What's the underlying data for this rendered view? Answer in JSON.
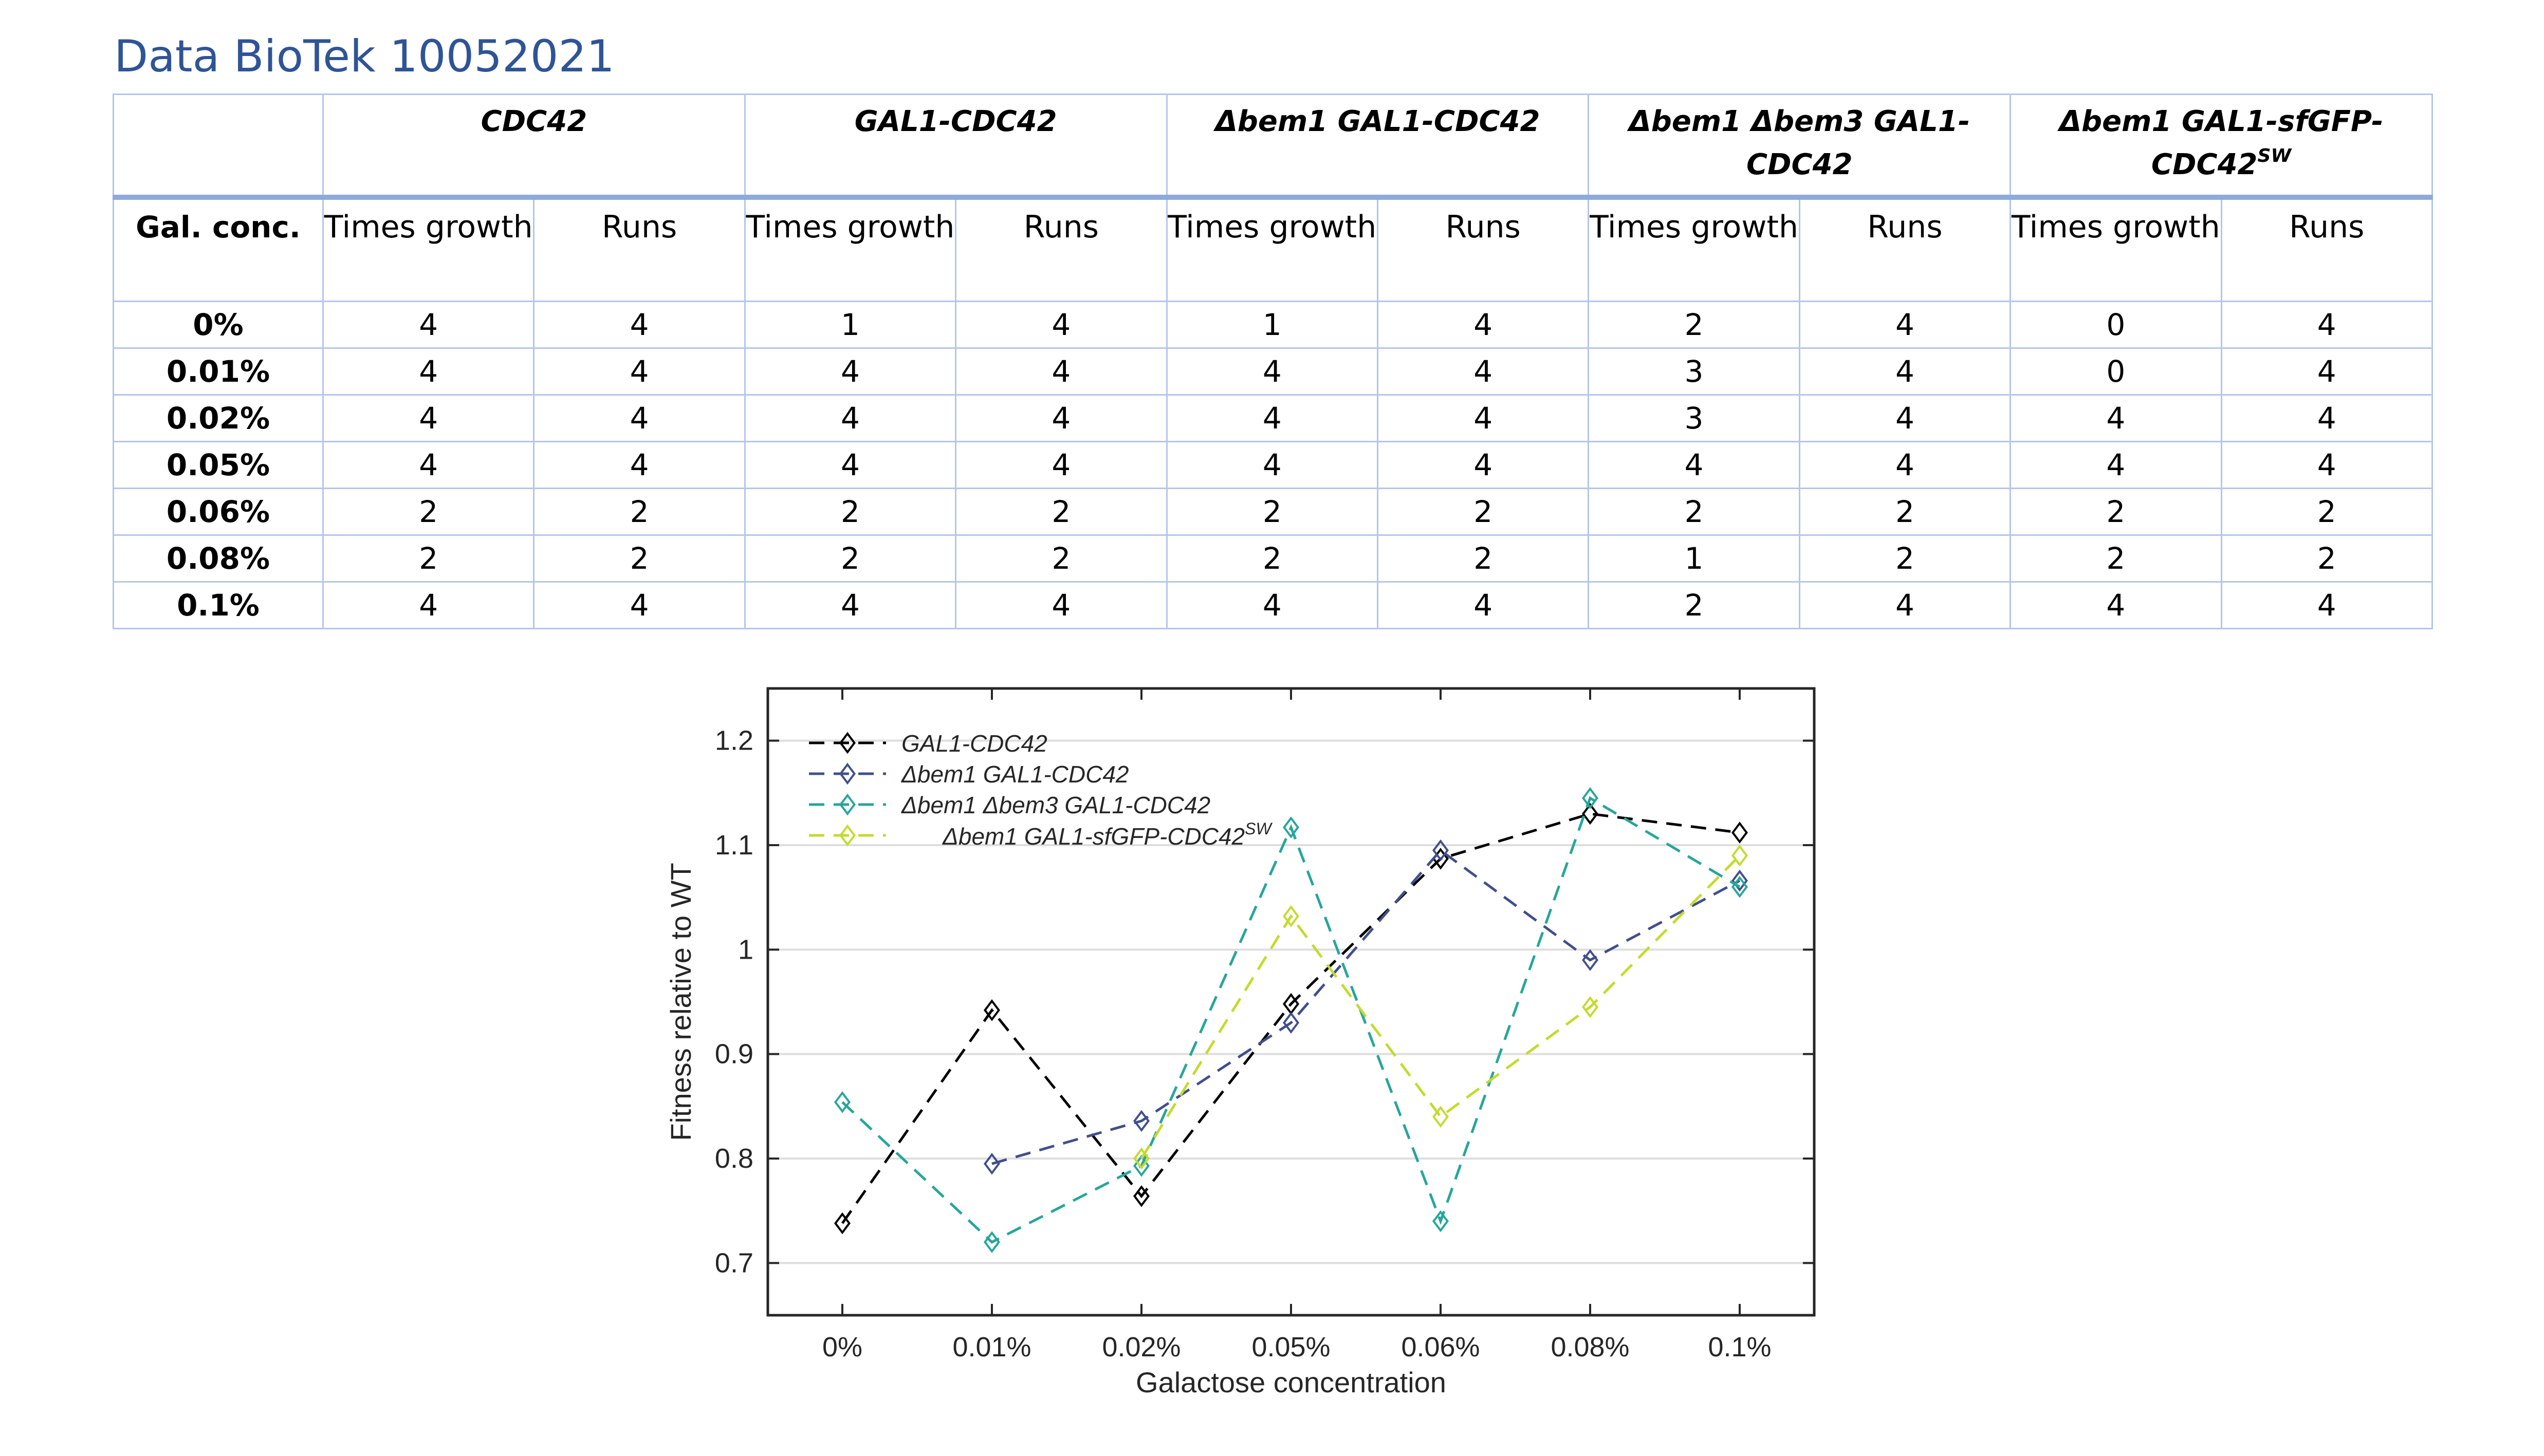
{
  "document": {
    "title": "Data BioTek 10052021"
  },
  "table": {
    "strains": [
      {
        "name": "CDC42",
        "sup": ""
      },
      {
        "name": "GAL1-CDC42",
        "sup": ""
      },
      {
        "name": "Δbem1 GAL1-CDC42",
        "sup": ""
      },
      {
        "name": "Δbem1 Δbem3 GAL1-CDC42",
        "sup": ""
      },
      {
        "name": "Δbem1 GAL1-sfGFP-CDC42",
        "sup": "SW"
      }
    ],
    "row_header": "Gal. conc.",
    "sub_headers": {
      "times": "Times growth",
      "runs": "Runs"
    },
    "rows": [
      {
        "conc": "0%",
        "values": [
          "4",
          "4",
          "1",
          "4",
          "1",
          "4",
          "2",
          "4",
          "0",
          "4"
        ]
      },
      {
        "conc": "0.01%",
        "values": [
          "4",
          "4",
          "4",
          "4",
          "4",
          "4",
          "3",
          "4",
          "0",
          "4"
        ]
      },
      {
        "conc": "0.02%",
        "values": [
          "4",
          "4",
          "4",
          "4",
          "4",
          "4",
          "3",
          "4",
          "4",
          "4"
        ]
      },
      {
        "conc": "0.05%",
        "values": [
          "4",
          "4",
          "4",
          "4",
          "4",
          "4",
          "4",
          "4",
          "4",
          "4"
        ]
      },
      {
        "conc": "0.06%",
        "values": [
          "2",
          "2",
          "2",
          "2",
          "2",
          "2",
          "2",
          "2",
          "2",
          "2"
        ]
      },
      {
        "conc": "0.08%",
        "values": [
          "2",
          "2",
          "2",
          "2",
          "2",
          "2",
          "1",
          "2",
          "2",
          "2"
        ]
      },
      {
        "conc": "0.1%",
        "values": [
          "4",
          "4",
          "4",
          "4",
          "4",
          "4",
          "2",
          "4",
          "4",
          "4"
        ]
      }
    ]
  },
  "chart_data": {
    "type": "line",
    "categories": [
      "0%",
      "0.01%",
      "0.02%",
      "0.05%",
      "0.06%",
      "0.08%",
      "0.1%"
    ],
    "xlabel": "Galactose concentration",
    "ylabel": "Fitness relative to WT",
    "ylim": [
      0.65,
      1.25
    ],
    "yticks": [
      0.7,
      0.8,
      0.9,
      1,
      1.1,
      1.2
    ],
    "ytick_labels": [
      "0.7",
      "0.8",
      "0.9",
      "1",
      "1.1",
      "1.2"
    ],
    "grid": "horizontal",
    "legend_position": "top-left",
    "marker": "diamond",
    "line_style": "dashed",
    "series": [
      {
        "name": "GAL1-CDC42",
        "sup": "",
        "color": "#000000",
        "values": [
          0.738,
          0.942,
          0.764,
          0.948,
          1.087,
          1.13,
          1.112
        ]
      },
      {
        "name": "Δbem1 GAL1-CDC42",
        "sup": "",
        "color": "#414f8a",
        "values": [
          null,
          0.795,
          0.836,
          0.93,
          1.095,
          0.99,
          1.066
        ]
      },
      {
        "name": "Δbem1 Δbem3 GAL1-CDC42",
        "sup": "",
        "color": "#26a69a",
        "values": [
          0.854,
          0.72,
          0.793,
          1.117,
          0.74,
          1.145,
          1.06
        ]
      },
      {
        "name": "Δbem1 GAL1-sfGFP-CDC42",
        "sup": "SW",
        "color": "#c3db2c",
        "values": [
          null,
          null,
          0.8,
          1.032,
          0.84,
          0.945,
          1.09
        ]
      }
    ]
  }
}
